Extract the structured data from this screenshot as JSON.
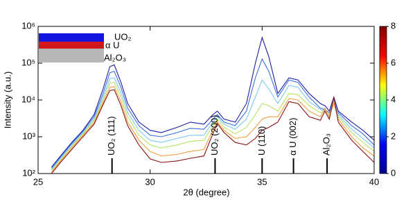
{
  "chart_data": {
    "type": "line",
    "y_label": "Intensity (a.u.)",
    "x_label": "2θ (degree)",
    "ylog": true,
    "xlim": [
      25,
      40
    ],
    "xticks": [
      25,
      30,
      35,
      40
    ],
    "ylim": [
      100,
      1000000
    ],
    "yticks": [
      {
        "value": 100,
        "label": "10²"
      },
      {
        "value": 1000,
        "label": "10³"
      },
      {
        "value": 10000,
        "label": "10⁴"
      },
      {
        "value": 100000,
        "label": "10⁵"
      },
      {
        "value": 1000000,
        "label": "10⁶"
      }
    ],
    "x": [
      25.6,
      26,
      26.5,
      27,
      27.5,
      27.9,
      28.2,
      28.4,
      28.7,
      29,
      29.5,
      30,
      30.5,
      31.2,
      31.8,
      32.4,
      32.8,
      33,
      33.3,
      33.8,
      34.3,
      34.7,
      35,
      35.3,
      35.7,
      36.2,
      36.6,
      37.1,
      37.6,
      37.8,
      38,
      38.2,
      38.4,
      39,
      39.5,
      40
    ],
    "series": [
      {
        "color": "#1a1aa8",
        "values": [
          150,
          300,
          700,
          1500,
          4000,
          20000,
          80000,
          90000,
          30000,
          8000,
          2500,
          1500,
          1300,
          1800,
          2500,
          2200,
          4000,
          5000,
          3000,
          2500,
          8000,
          100000,
          500000,
          150000,
          15000,
          40000,
          35000,
          15000,
          8000,
          7000,
          5000,
          12000,
          5000,
          2500,
          1500,
          800
        ]
      },
      {
        "color": "#3a6fe0",
        "values": [
          140,
          280,
          650,
          1400,
          3500,
          15000,
          55000,
          60000,
          22000,
          6000,
          2000,
          1100,
          1000,
          1300,
          1700,
          1600,
          3000,
          4000,
          2500,
          2000,
          5000,
          40000,
          130000,
          60000,
          12000,
          35000,
          30000,
          12000,
          6000,
          5500,
          4500,
          11000,
          4500,
          2000,
          1200,
          600
        ]
      },
      {
        "color": "#7cc8f0",
        "values": [
          130,
          260,
          600,
          1300,
          3000,
          12000,
          38000,
          40000,
          16000,
          4500,
          1500,
          800,
          700,
          900,
          1100,
          1100,
          2500,
          3500,
          2200,
          1600,
          3000,
          12000,
          35000,
          20000,
          8000,
          25000,
          22000,
          9000,
          5500,
          5000,
          4000,
          10000,
          4000,
          1600,
          900,
          500
        ]
      },
      {
        "color": "#b8e060",
        "values": [
          120,
          240,
          550,
          1200,
          2700,
          10000,
          29000,
          30000,
          12000,
          3500,
          1100,
          600,
          500,
          600,
          750,
          800,
          2000,
          3000,
          1800,
          1200,
          1800,
          4000,
          8000,
          7000,
          5000,
          15000,
          14000,
          7000,
          4500,
          5000,
          4000,
          9000,
          3500,
          1300,
          700,
          400
        ]
      },
      {
        "color": "#f0a040",
        "values": [
          110,
          220,
          500,
          1100,
          2400,
          8500,
          22000,
          23000,
          9000,
          2500,
          800,
          400,
          300,
          330,
          400,
          450,
          1500,
          2500,
          1500,
          900,
          1000,
          1800,
          3000,
          3500,
          3500,
          11000,
          10000,
          5000,
          3500,
          6000,
          3500,
          8000,
          3000,
          1000,
          500,
          300
        ]
      },
      {
        "color": "#8b1010",
        "values": [
          100,
          200,
          450,
          1000,
          2200,
          7500,
          18000,
          19000,
          7000,
          2000,
          600,
          250,
          200,
          220,
          260,
          300,
          1200,
          2300,
          1300,
          700,
          600,
          900,
          1500,
          1800,
          2500,
          9000,
          8000,
          3500,
          2800,
          5000,
          3000,
          12000,
          2500,
          800,
          400,
          200
        ]
      }
    ],
    "annotations": [
      {
        "text": "UO₂ (111)",
        "x": 28.3
      },
      {
        "text": "UO₂ (200)",
        "x": 32.9
      },
      {
        "text": "U (110)",
        "x": 35.0
      },
      {
        "text": "α U (002)",
        "x": 36.4
      },
      {
        "text": "Al₂O₃",
        "x": 37.9
      }
    ],
    "colorbar": {
      "lim": [
        0,
        8
      ],
      "ticks": [
        0,
        2,
        4,
        6,
        8
      ],
      "colors": [
        "#00008f",
        "#0000ff",
        "#00ffff",
        "#ffff00",
        "#ff0000",
        "#800000"
      ]
    },
    "inset": {
      "layers": [
        {
          "label": "UO₂",
          "color": "#1515e0"
        },
        {
          "label": "α U",
          "color": "#d01818"
        },
        {
          "label": "Al₂O₃",
          "color": "#b8b8b8"
        }
      ]
    }
  }
}
